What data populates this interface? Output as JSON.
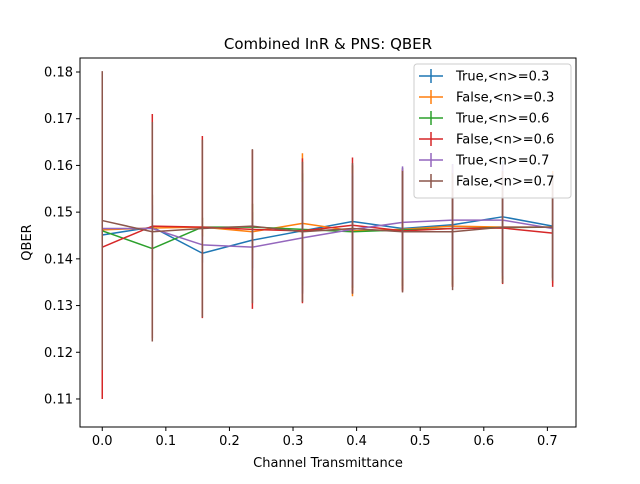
{
  "chart_data": {
    "type": "line",
    "title": "Combined InR & PNS: QBER",
    "xlabel": "Channel Transmittance",
    "ylabel": "QBER",
    "xlim": [
      -0.035,
      0.745
    ],
    "ylim": [
      0.104,
      0.183
    ],
    "xticks": [
      0.0,
      0.1,
      0.2,
      0.3,
      0.4,
      0.5,
      0.6,
      0.7
    ],
    "xtick_labels": [
      "0.0",
      "0.1",
      "0.2",
      "0.3",
      "0.4",
      "0.5",
      "0.6",
      "0.7"
    ],
    "yticks": [
      0.11,
      0.12,
      0.13,
      0.14,
      0.15,
      0.16,
      0.17,
      0.18
    ],
    "ytick_labels": [
      "0.11",
      "0.12",
      "0.13",
      "0.14",
      "0.15",
      "0.16",
      "0.17",
      "0.18"
    ],
    "grid": false,
    "legend_position": "top-right",
    "x": [
      0.0,
      0.0787,
      0.1574,
      0.2361,
      0.3148,
      0.3935,
      0.4722,
      0.5509,
      0.6296,
      0.7083
    ],
    "series": [
      {
        "name": "True,<n>=0.3",
        "color": "#1f77b4",
        "values": [
          0.1451,
          0.1468,
          0.1412,
          0.144,
          0.146,
          0.148,
          0.1465,
          0.1473,
          0.149,
          0.147
        ],
        "errors": [
          0.003,
          0.007,
          0.002,
          0.006,
          0.013,
          0.012,
          0.013,
          0.013,
          0.012,
          0.011
        ]
      },
      {
        "name": "False,<n>=0.3",
        "color": "#ff7f0e",
        "values": [
          0.1462,
          0.1466,
          0.1468,
          0.1458,
          0.1476,
          0.146,
          0.1463,
          0.147,
          0.1468,
          0.1468
        ],
        "errors": [
          0.003,
          0.007,
          0.002,
          0.006,
          0.015,
          0.014,
          0.013,
          0.013,
          0.012,
          0.012
        ]
      },
      {
        "name": "True,<n>=0.6",
        "color": "#2ca02c",
        "values": [
          0.146,
          0.1422,
          0.1468,
          0.1468,
          0.1463,
          0.1458,
          0.1462,
          0.1465,
          0.1467,
          0.1468
        ],
        "errors": [
          0.003,
          0.005,
          0.002,
          0.005,
          0.012,
          0.012,
          0.012,
          0.012,
          0.011,
          0.011
        ]
      },
      {
        "name": "False,<n>=0.6",
        "color": "#d62728",
        "values": [
          0.1425,
          0.147,
          0.1468,
          0.1463,
          0.146,
          0.1472,
          0.146,
          0.1465,
          0.1466,
          0.1455
        ],
        "errors": [
          0.0325,
          0.024,
          0.0195,
          0.017,
          0.0155,
          0.0145,
          0.013,
          0.0125,
          0.012,
          0.0115
        ]
      },
      {
        "name": "True,<n>=0.7",
        "color": "#9467bd",
        "values": [
          0.1465,
          0.1465,
          0.143,
          0.1425,
          0.1445,
          0.1463,
          0.1478,
          0.1483,
          0.1483,
          0.1465
        ],
        "errors": [
          0.003,
          0.005,
          0.002,
          0.005,
          0.012,
          0.012,
          0.012,
          0.012,
          0.012,
          0.011
        ]
      },
      {
        "name": "False,<n>=0.7",
        "color": "#8c564b",
        "values": [
          0.1482,
          0.1458,
          0.1465,
          0.147,
          0.1458,
          0.1465,
          0.1458,
          0.1458,
          0.1468,
          0.1468
        ],
        "errors": [
          0.032,
          0.0235,
          0.019,
          0.0165,
          0.015,
          0.014,
          0.013,
          0.0125,
          0.012,
          0.0115
        ]
      }
    ]
  }
}
